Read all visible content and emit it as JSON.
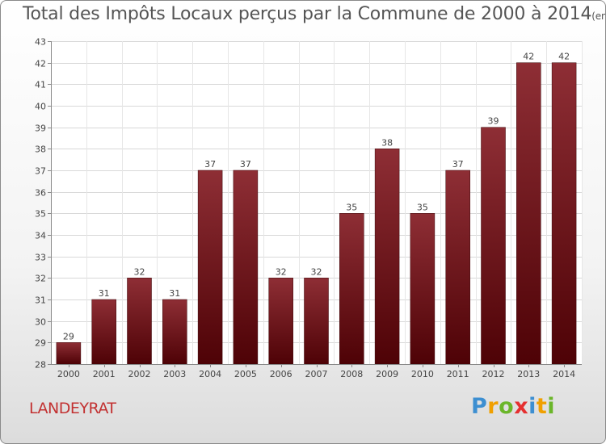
{
  "header": {
    "title": "Total des Impôts Locaux perçus par la Commune de 2000 à 2014",
    "unit": "(en milliers d'€)"
  },
  "footer": {
    "commune": "LANDEYRAT",
    "logo_letters": [
      "P",
      "r",
      "o",
      "x",
      "i",
      "t",
      "i"
    ],
    "logo_colors": [
      "#3d8fd1",
      "#f0a000",
      "#6bb62a",
      "#e53030",
      "#3d8fd1",
      "#f0a000",
      "#6bb62a"
    ]
  },
  "chart_data": {
    "type": "bar",
    "title": "Total des Impôts Locaux perçus par la Commune de 2000 à 2014",
    "xlabel": "",
    "ylabel": "",
    "categories": [
      "2000",
      "2001",
      "2002",
      "2003",
      "2004",
      "2005",
      "2006",
      "2007",
      "2008",
      "2009",
      "2010",
      "2011",
      "2012",
      "2013",
      "2014"
    ],
    "values": [
      29,
      31,
      32,
      31,
      37,
      37,
      32,
      32,
      35,
      38,
      35,
      37,
      39,
      42,
      42
    ],
    "ylim": [
      28,
      43
    ],
    "yticks": [
      28,
      29,
      30,
      31,
      32,
      33,
      34,
      35,
      36,
      37,
      38,
      39,
      40,
      41,
      42,
      43
    ],
    "grid": true,
    "bar_color": "#6b1018"
  }
}
